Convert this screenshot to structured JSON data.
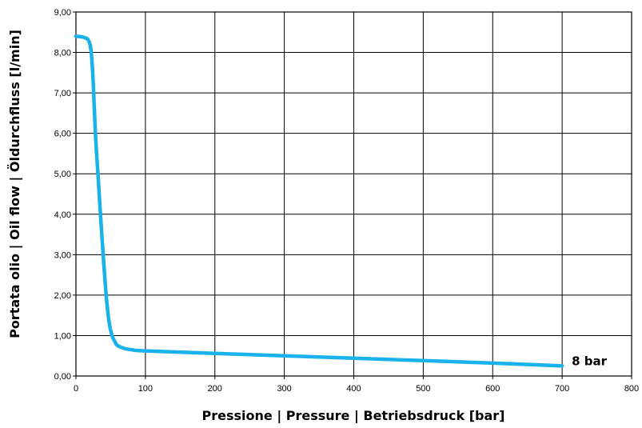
{
  "chart_data": {
    "type": "line",
    "xlabel": "Pressione | Pressure | Betriebsdruck [bar]",
    "ylabel": "Portata olio | Oil flow | Öldurchfluss [l/min]",
    "xlim": [
      0,
      800
    ],
    "ylim": [
      0,
      9
    ],
    "x_ticks": [
      "0",
      "100",
      "200",
      "300",
      "400",
      "500",
      "600",
      "700",
      "800"
    ],
    "y_ticks": [
      "0,00",
      "1,00",
      "2,00",
      "3,00",
      "4,00",
      "5,00",
      "6,00",
      "7,00",
      "8,00",
      "9,00"
    ],
    "grid": true,
    "series": [
      {
        "name": "8 bar",
        "color": "#1ab2ea",
        "x": [
          0,
          10,
          18,
          22,
          25,
          28,
          32,
          36,
          40,
          44,
          48,
          52,
          56,
          60,
          70,
          80,
          100,
          200,
          300,
          400,
          500,
          600,
          700
        ],
        "y": [
          8.4,
          8.38,
          8.3,
          8.0,
          7.2,
          6.0,
          4.9,
          3.8,
          2.8,
          1.9,
          1.3,
          1.0,
          0.85,
          0.75,
          0.68,
          0.65,
          0.62,
          0.56,
          0.5,
          0.44,
          0.38,
          0.32,
          0.25
        ]
      }
    ]
  }
}
